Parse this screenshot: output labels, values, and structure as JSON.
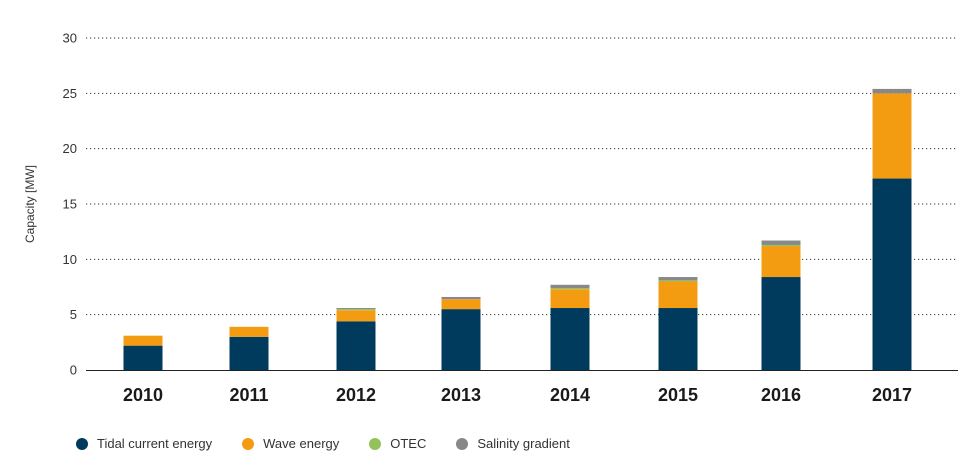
{
  "chart_data": {
    "type": "bar",
    "stacked": true,
    "title": "",
    "xlabel": "",
    "ylabel": "Capacity [MW]",
    "ylim": [
      0,
      30
    ],
    "yticks": [
      0,
      5,
      10,
      15,
      20,
      25,
      30
    ],
    "grid": true,
    "legend_position": "bottom-left",
    "categories": [
      "2010",
      "2011",
      "2012",
      "2013",
      "2014",
      "2015",
      "2016",
      "2017"
    ],
    "series": [
      {
        "name": "Tidal current energy",
        "color": "#003a5d",
        "values": [
          2.2,
          3.0,
          4.4,
          5.5,
          5.6,
          5.6,
          8.4,
          17.3
        ]
      },
      {
        "name": "Wave energy",
        "color": "#f39c12",
        "values": [
          0.9,
          0.9,
          1.0,
          0.9,
          1.7,
          2.4,
          2.8,
          7.7
        ]
      },
      {
        "name": "OTEC",
        "color": "#93c15a",
        "values": [
          0.0,
          0.0,
          0.1,
          0.0,
          0.1,
          0.1,
          0.1,
          0.0
        ]
      },
      {
        "name": "Salinity gradient",
        "color": "#888888",
        "values": [
          0.0,
          0.0,
          0.1,
          0.2,
          0.3,
          0.3,
          0.4,
          0.4
        ]
      }
    ]
  }
}
